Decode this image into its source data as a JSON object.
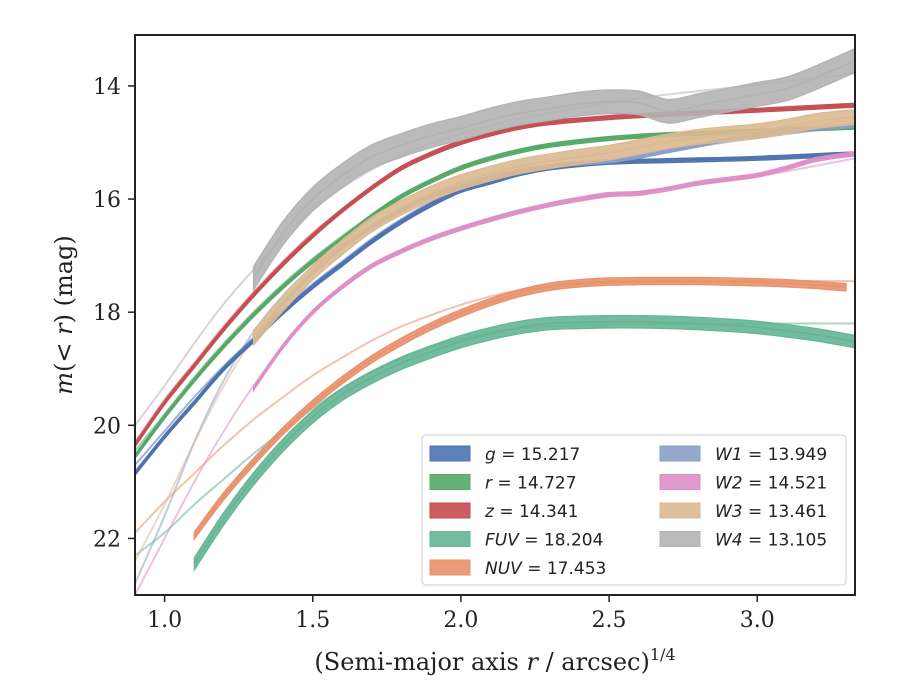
{
  "chart_data": {
    "type": "line",
    "title": "",
    "xlabel": "(Semi-major axis r / arcsec)",
    "xlabel_parts": {
      "pre": "(Semi-major axis ",
      "var": "r",
      "post": " / arcsec)",
      "sup": "1/4"
    },
    "ylabel": "m(< r) (mag)",
    "ylabel_parts": {
      "var": "m",
      "mid": "(< ",
      "var2": "r",
      "post": ") (mag)"
    },
    "xlim": [
      0.9,
      3.33
    ],
    "ylim": [
      23.0,
      13.1
    ],
    "y_inverted": true,
    "xticks": [
      1.0,
      1.5,
      2.0,
      2.5,
      3.0
    ],
    "xtick_labels": [
      "1.0",
      "1.5",
      "2.0",
      "2.5",
      "3.0"
    ],
    "yticks": [
      14,
      16,
      18,
      20,
      22
    ],
    "ytick_labels": [
      "14",
      "16",
      "18",
      "20",
      "22"
    ],
    "grid": false,
    "legend_placement": "lower-right",
    "legend_columns": 2,
    "series": [
      {
        "label": "g",
        "value": "15.217",
        "color": "#4c72b0",
        "band": true,
        "x": [
          0.9,
          1.0,
          1.1,
          1.2,
          1.3,
          1.4,
          1.5,
          1.6,
          1.7,
          1.8,
          1.9,
          2.0,
          2.1,
          2.2,
          2.3,
          2.5,
          2.7,
          3.0,
          3.33
        ],
        "y": [
          20.85,
          20.2,
          19.6,
          19.0,
          18.5,
          18.0,
          17.55,
          17.15,
          16.75,
          16.4,
          16.1,
          15.85,
          15.7,
          15.55,
          15.45,
          15.35,
          15.32,
          15.28,
          15.2
        ],
        "width": 0.07,
        "fit": [
          20.7,
          20.1,
          19.5,
          18.95,
          18.45,
          17.95,
          17.5,
          17.1,
          16.7,
          16.35,
          16.05,
          15.82,
          15.65,
          15.52,
          15.45,
          15.36,
          15.32,
          15.27,
          15.2
        ]
      },
      {
        "label": "r",
        "value": "14.727",
        "color": "#55a868",
        "band": true,
        "x": [
          0.9,
          1.0,
          1.1,
          1.2,
          1.3,
          1.4,
          1.5,
          1.6,
          1.7,
          1.8,
          1.9,
          2.0,
          2.1,
          2.2,
          2.3,
          2.5,
          2.7,
          3.0,
          3.33
        ],
        "y": [
          20.55,
          19.85,
          19.2,
          18.6,
          18.05,
          17.55,
          17.1,
          16.7,
          16.3,
          15.95,
          15.68,
          15.45,
          15.28,
          15.15,
          15.05,
          14.93,
          14.86,
          14.8,
          14.73
        ],
        "width": 0.07,
        "fit": [
          20.45,
          19.8,
          19.15,
          18.55,
          18.0,
          17.5,
          17.05,
          16.65,
          16.28,
          15.95,
          15.68,
          15.45,
          15.28,
          15.15,
          15.05,
          14.93,
          14.86,
          14.8,
          14.73
        ]
      },
      {
        "label": "z",
        "value": "14.341",
        "color": "#c44e52",
        "band": true,
        "x": [
          0.9,
          1.0,
          1.1,
          1.2,
          1.3,
          1.4,
          1.5,
          1.6,
          1.7,
          1.8,
          1.9,
          2.0,
          2.1,
          2.2,
          2.3,
          2.5,
          2.7,
          3.0,
          3.33
        ],
        "y": [
          20.35,
          19.6,
          18.95,
          18.3,
          17.7,
          17.15,
          16.65,
          16.2,
          15.8,
          15.45,
          15.2,
          15.0,
          14.85,
          14.73,
          14.65,
          14.56,
          14.5,
          14.43,
          14.34
        ],
        "width": 0.07,
        "fit": [
          20.3,
          19.55,
          18.9,
          18.25,
          17.65,
          17.1,
          16.6,
          16.18,
          15.8,
          15.45,
          15.2,
          15.0,
          14.85,
          14.73,
          14.65,
          14.56,
          14.5,
          14.43,
          14.34
        ]
      },
      {
        "label": "FUV",
        "value": "18.204",
        "color": "#64b596",
        "band": true,
        "x": [
          1.1,
          1.2,
          1.3,
          1.4,
          1.5,
          1.6,
          1.7,
          1.8,
          1.9,
          2.0,
          2.1,
          2.2,
          2.3,
          2.4,
          2.5,
          2.6,
          2.7,
          2.8,
          2.9,
          3.0,
          3.1,
          3.2,
          3.33
        ],
        "y": [
          22.45,
          21.65,
          20.95,
          20.35,
          19.85,
          19.45,
          19.15,
          18.9,
          18.7,
          18.52,
          18.38,
          18.27,
          18.2,
          18.18,
          18.17,
          18.17,
          18.18,
          18.2,
          18.23,
          18.27,
          18.33,
          18.4,
          18.52
        ],
        "width": 0.22,
        "fit_x": [
          0.9,
          1.0,
          1.1,
          1.2,
          1.3,
          1.4,
          1.5,
          1.6,
          1.7,
          1.8,
          1.9,
          2.0,
          2.1,
          2.2,
          2.3,
          2.5,
          2.7,
          3.0,
          3.33
        ],
        "fit": [
          22.3,
          21.9,
          21.4,
          20.95,
          20.5,
          20.1,
          19.7,
          19.35,
          19.05,
          18.82,
          18.62,
          18.47,
          18.36,
          18.29,
          18.25,
          18.22,
          18.21,
          18.2,
          18.2
        ]
      },
      {
        "label": "NUV",
        "value": "17.453",
        "color": "#e8916c",
        "band": true,
        "x": [
          1.1,
          1.2,
          1.3,
          1.4,
          1.5,
          1.6,
          1.7,
          1.8,
          1.9,
          2.0,
          2.1,
          2.2,
          2.3,
          2.4,
          2.5,
          2.6,
          2.7,
          2.8,
          2.9,
          3.0,
          3.1,
          3.2,
          3.3
        ],
        "y": [
          21.95,
          21.25,
          20.65,
          20.1,
          19.62,
          19.2,
          18.83,
          18.52,
          18.25,
          18.02,
          17.82,
          17.66,
          17.55,
          17.49,
          17.46,
          17.45,
          17.45,
          17.45,
          17.46,
          17.47,
          17.49,
          17.52,
          17.56
        ],
        "width": 0.13,
        "fit_x": [
          0.9,
          1.0,
          1.1,
          1.2,
          1.3,
          1.4,
          1.5,
          1.6,
          1.7,
          1.8,
          1.9,
          2.0,
          2.1,
          2.2,
          2.3,
          2.5,
          2.7,
          3.0,
          3.33
        ],
        "fit": [
          21.9,
          21.35,
          20.85,
          20.35,
          19.9,
          19.5,
          19.12,
          18.8,
          18.5,
          18.25,
          18.05,
          17.87,
          17.72,
          17.61,
          17.54,
          17.48,
          17.46,
          17.45,
          17.45
        ]
      },
      {
        "label": "W1",
        "value": "13.949",
        "color": "#8c9ec8",
        "band": true,
        "x": [
          1.3,
          1.4,
          1.5,
          1.6,
          1.7,
          1.8,
          1.9,
          2.0,
          2.1,
          2.2,
          2.3,
          2.4,
          2.5,
          2.6,
          2.7,
          2.8,
          2.9,
          3.0,
          3.1,
          3.2,
          3.33
        ],
        "y": [
          18.5,
          17.85,
          17.3,
          16.85,
          16.5,
          16.2,
          15.95,
          15.78,
          15.62,
          15.5,
          15.42,
          15.37,
          15.33,
          15.25,
          15.15,
          15.05,
          14.95,
          14.88,
          14.82,
          14.75,
          14.7
        ],
        "width": 0.06,
        "fit_x": [
          0.9,
          1.0,
          1.1,
          1.2,
          1.3,
          1.4,
          1.5,
          1.6,
          1.7,
          1.8,
          1.9,
          2.0,
          2.1,
          2.2,
          2.3,
          2.5,
          2.7,
          3.0,
          3.33
        ],
        "fit": [
          22.8,
          21.6,
          20.3,
          19.2,
          18.35,
          17.7,
          17.2,
          16.8,
          16.45,
          16.15,
          15.92,
          15.75,
          15.6,
          15.5,
          15.42,
          15.3,
          15.15,
          14.92,
          14.7
        ]
      },
      {
        "label": "W2",
        "value": "14.521",
        "color": "#dd8fc6",
        "band": true,
        "x": [
          1.3,
          1.4,
          1.5,
          1.6,
          1.7,
          1.8,
          1.9,
          2.0,
          2.1,
          2.2,
          2.3,
          2.4,
          2.5,
          2.6,
          2.7,
          2.8,
          2.9,
          3.0,
          3.1,
          3.2,
          3.33
        ],
        "y": [
          19.35,
          18.6,
          18.0,
          17.55,
          17.18,
          16.92,
          16.7,
          16.52,
          16.36,
          16.22,
          16.1,
          16.0,
          15.92,
          15.9,
          15.82,
          15.72,
          15.65,
          15.58,
          15.45,
          15.3,
          15.2
        ],
        "width": 0.07,
        "fit_x": [
          0.9,
          1.0,
          1.1,
          1.2,
          1.3,
          1.4,
          1.5,
          1.6,
          1.7,
          1.8,
          1.9,
          2.0,
          2.1,
          2.2,
          2.3,
          2.5,
          2.7,
          3.0,
          3.33
        ],
        "fit": [
          23.0,
          22.0,
          21.0,
          20.1,
          19.3,
          18.6,
          18.0,
          17.55,
          17.2,
          16.92,
          16.7,
          16.52,
          16.36,
          16.22,
          16.12,
          15.95,
          15.8,
          15.6,
          15.28
        ]
      },
      {
        "label": "W3",
        "value": "13.461",
        "color": "#dbb991",
        "band": true,
        "x": [
          1.3,
          1.4,
          1.5,
          1.6,
          1.7,
          1.8,
          1.9,
          2.0,
          2.1,
          2.2,
          2.3,
          2.4,
          2.5,
          2.6,
          2.7,
          2.8,
          2.9,
          3.0,
          3.1,
          3.2,
          3.33
        ],
        "y": [
          18.45,
          17.85,
          17.3,
          16.85,
          16.45,
          16.15,
          15.9,
          15.7,
          15.55,
          15.42,
          15.33,
          15.25,
          15.18,
          15.08,
          14.98,
          14.9,
          14.85,
          14.8,
          14.72,
          14.62,
          14.55
        ],
        "width": 0.26,
        "fit_x": [
          0.9,
          1.0,
          1.1,
          1.2,
          1.3,
          1.4,
          1.5,
          1.6,
          1.7,
          1.8,
          1.9,
          2.0,
          2.1,
          2.2,
          2.3,
          2.5,
          2.7,
          3.0,
          3.33
        ],
        "fit": [
          22.4,
          21.4,
          20.3,
          19.3,
          18.45,
          17.82,
          17.3,
          16.85,
          16.48,
          16.15,
          15.9,
          15.7,
          15.55,
          15.42,
          15.33,
          15.18,
          15.0,
          14.8,
          14.6
        ]
      },
      {
        "label": "W4",
        "value": "13.105",
        "color": "#b2b2b2",
        "band": true,
        "x": [
          1.3,
          1.4,
          1.5,
          1.6,
          1.7,
          1.8,
          1.9,
          2.0,
          2.1,
          2.2,
          2.3,
          2.4,
          2.5,
          2.6,
          2.7,
          2.8,
          2.9,
          3.0,
          3.1,
          3.2,
          3.33
        ],
        "y": [
          17.4,
          16.6,
          16.0,
          15.58,
          15.25,
          15.05,
          14.88,
          14.75,
          14.6,
          14.48,
          14.4,
          14.32,
          14.28,
          14.3,
          14.45,
          14.35,
          14.25,
          14.15,
          14.05,
          13.85,
          13.55
        ],
        "width": 0.42,
        "fit_x": [
          0.9,
          1.0,
          1.1,
          1.2,
          1.3,
          1.4,
          1.5,
          1.6,
          1.7,
          1.8,
          1.9,
          2.0,
          2.1,
          2.2,
          2.3,
          2.5,
          2.7,
          3.0,
          3.33
        ],
        "fit": [
          20.0,
          19.3,
          18.55,
          17.85,
          17.25,
          16.7,
          16.2,
          15.8,
          15.48,
          15.22,
          15.02,
          14.85,
          14.7,
          14.58,
          14.48,
          14.3,
          14.15,
          13.98,
          13.78
        ]
      }
    ]
  }
}
